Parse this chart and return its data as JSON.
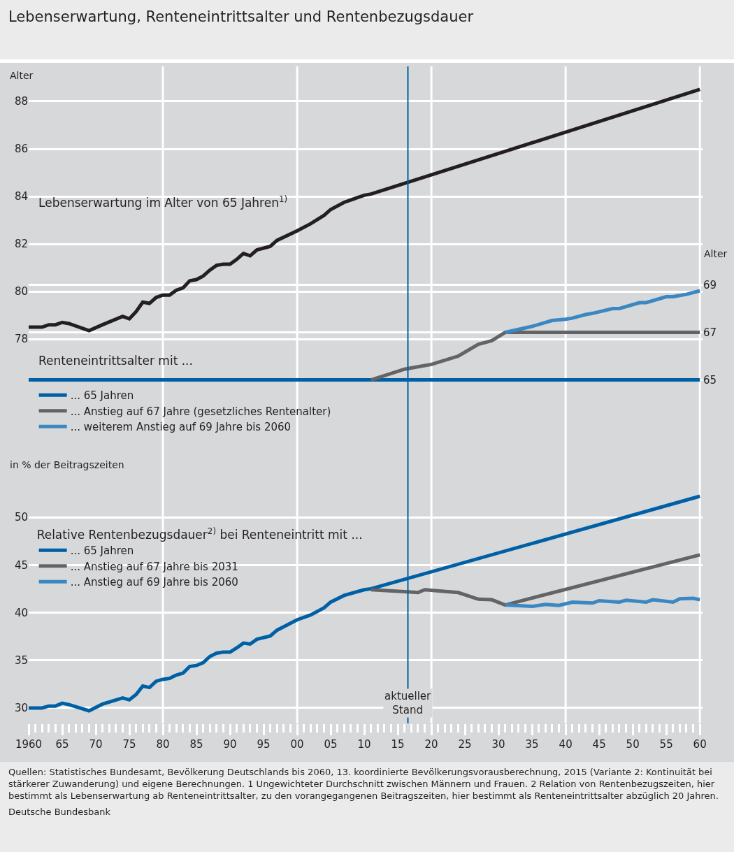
{
  "chart_data": [
    {
      "type": "line",
      "title": "Lebenserwartung, Renteneintrittsalter und Rentenbezugsdauer",
      "ylabel": "Alter",
      "y2label": "Alter",
      "annotations": [
        "Renteneintrittsalter mit ..."
      ],
      "xlim": [
        1960,
        2060.4
      ],
      "xticks": [
        {
          "value": 1960,
          "label": null
        },
        {
          "value": 1965,
          "label": null
        },
        {
          "value": 1970,
          "label": null
        },
        {
          "value": 1975,
          "label": null
        },
        {
          "value": 1980,
          "label": null
        },
        {
          "value": 1985,
          "label": null
        },
        {
          "value": 1990,
          "label": null
        },
        {
          "value": 1995,
          "label": null
        },
        {
          "value": 2000,
          "label": null
        },
        {
          "value": 2005,
          "label": null
        },
        {
          "value": 2010,
          "label": null
        },
        {
          "value": 2015,
          "label": null
        },
        {
          "value": 2020,
          "label": null
        },
        {
          "value": 2025,
          "label": null
        },
        {
          "value": 2030,
          "label": null
        },
        {
          "value": 2035,
          "label": null
        },
        {
          "value": 2040,
          "label": null
        },
        {
          "value": 2045,
          "label": null
        },
        {
          "value": 2050,
          "label": null
        },
        {
          "value": 2055,
          "label": null
        },
        {
          "value": 2060,
          "label": null
        }
      ],
      "ylim": [
        73.59,
        89.47
      ],
      "yticks": [
        78,
        80,
        82,
        84,
        86,
        88
      ],
      "y2lim": [
        62.31,
        78.19
      ],
      "y2ticks": [
        65,
        67,
        69
      ],
      "tick_labels": "y",
      "grid": true,
      "legend": "bottom left",
      "line_style": "solid",
      "marker": "none",
      "ref_lines": [
        {
          "axis": "x",
          "value": 2016.5,
          "color": "#0060a6"
        }
      ],
      "series": [
        {
          "name": "Lebenserwartung im Alter von 65 Jahren$^{1)}$",
          "color": "#231f20",
          "x": [
            1960,
            1962,
            1963,
            1964,
            1965,
            1966,
            1969,
            1971,
            1974,
            1975,
            1976,
            1977,
            1978,
            1979,
            1980,
            1981,
            1982,
            1983,
            1984,
            1985,
            1986,
            1987,
            1988,
            1989,
            1990,
            1991,
            1992,
            1993,
            1994,
            1996,
            1997,
            2000,
            2002,
            2004,
            2005,
            2007,
            2010,
            2011,
            2060
          ],
          "values": [
            78.5,
            78.5,
            78.6,
            78.6,
            78.7,
            78.65,
            78.35,
            78.6,
            78.95,
            78.85,
            79.15,
            79.55,
            79.5,
            79.75,
            79.85,
            79.85,
            80.05,
            80.15,
            80.45,
            80.5,
            80.65,
            80.9,
            81.1,
            81.15,
            81.15,
            81.35,
            81.6,
            81.5,
            81.75,
            81.9,
            82.15,
            82.55,
            82.85,
            83.2,
            83.45,
            83.75,
            84.05,
            84.1,
            88.5
          ]
        },
        {
          "name": "... Anstieg auf 67 Jahre (gesetzliches Rentenalter)",
          "color": "#646466",
          "axis": "y2",
          "x": [
            2011,
            2016,
            2018,
            2020,
            2024,
            2027,
            2029,
            2031,
            2060
          ],
          "values": [
            65,
            65.45,
            65.55,
            65.65,
            66.0,
            66.5,
            66.65,
            67,
            67
          ]
        },
        {
          "name": "... weiterem Anstieg auf 69 Jahre bis 2060",
          "color": "#3a87c2",
          "axis": "y2",
          "x": [
            2031,
            2035,
            2038,
            2040,
            2041,
            2043,
            2044,
            2047,
            2048,
            2051,
            2052,
            2055,
            2056,
            2058,
            2060
          ],
          "values": [
            67,
            67.25,
            67.5,
            67.55,
            67.6,
            67.75,
            67.8,
            68.0,
            68.0,
            68.25,
            68.25,
            68.5,
            68.5,
            68.6,
            68.75
          ]
        },
        {
          "name": "... 65 Jahren",
          "color": "#0060a6",
          "axis": "y2",
          "x": [
            1960,
            2060
          ],
          "values": [
            65,
            65
          ]
        }
      ]
    },
    {
      "type": "line",
      "ylabel": "in % der Beitragszeiten",
      "legend_title": "Relative Rentenbezugsdauer$^{2)}$ bei Renteneintritt mit ...",
      "annotations": [
        "Quellen: Statistisches Bundesamt, Bevölkerung Deutschlands bis 2060, 13. koordinierte Bevölkerungsvorausberechnung, 2015 (Variante 2: Kontinuität bei stärkerer Zuwanderung) und eigene Berechnungen. 1 Ungewichteter Durchschnitt zwischen Männern und Frauen. 2 Relation von Rentenbezugszeiten, hier bestimmt als Lebenserwartung ab Renteneintrittsalter, zu den vorangegangenen Beitragszeiten, hier bestimmt als Renteneintrittsalter abzüglich 20 Jahren.",
        "Deutsche Bundesbank"
      ],
      "xlim": [
        1960,
        2060.4
      ],
      "xticks": [
        {
          "value": 1960,
          "label": "1960"
        },
        {
          "value": 1965,
          "label": "65"
        },
        {
          "value": 1970,
          "label": "70"
        },
        {
          "value": 1975,
          "label": "75"
        },
        {
          "value": 1980,
          "label": "80"
        },
        {
          "value": 1985,
          "label": "85"
        },
        {
          "value": 1990,
          "label": "90"
        },
        {
          "value": 1995,
          "label": "95"
        },
        {
          "value": 2000,
          "label": "00"
        },
        {
          "value": 2005,
          "label": "05"
        },
        {
          "value": 2010,
          "label": "10"
        },
        {
          "value": 2015,
          "label": "15"
        },
        {
          "value": 2020,
          "label": "20"
        },
        {
          "value": 2025,
          "label": "25"
        },
        {
          "value": 2030,
          "label": "30"
        },
        {
          "value": 2035,
          "label": "35"
        },
        {
          "value": 2040,
          "label": "40"
        },
        {
          "value": 2045,
          "label": "45"
        },
        {
          "value": 2050,
          "label": "50"
        },
        {
          "value": 2055,
          "label": "55"
        },
        {
          "value": 2060,
          "label": "60"
        }
      ],
      "ylim": [
        28.38,
        57.7
      ],
      "yticks": [
        30,
        35,
        40,
        45,
        50
      ],
      "grid": true,
      "legend": "top left",
      "line_style": "solid",
      "marker": "none",
      "ref_lines": [
        {
          "axis": "x",
          "value": 2016.5,
          "label": "aktueller Stand",
          "color": "#0060a6"
        }
      ],
      "series": [
        {
          "name": "... 65 Jahren",
          "color": "#0060a6",
          "x": [
            1960,
            1962,
            1963,
            1964,
            1965,
            1966,
            1969,
            1971,
            1974,
            1975,
            1976,
            1977,
            1978,
            1979,
            1980,
            1981,
            1982,
            1983,
            1984,
            1985,
            1986,
            1987,
            1988,
            1989,
            1990,
            1991,
            1992,
            1993,
            1994,
            1996,
            1997,
            2000,
            2002,
            2004,
            2005,
            2007,
            2010,
            2011,
            2060
          ],
          "values": [
            30,
            30,
            30.2,
            30.2,
            30.5,
            30.35,
            29.7,
            30.4,
            31.05,
            30.85,
            31.4,
            32.3,
            32.15,
            32.8,
            33.0,
            33.1,
            33.45,
            33.65,
            34.35,
            34.45,
            34.75,
            35.4,
            35.75,
            35.85,
            35.85,
            36.3,
            36.8,
            36.7,
            37.2,
            37.55,
            38.15,
            39.25,
            39.75,
            40.5,
            41.1,
            41.8,
            42.4,
            42.5,
            52.2
          ]
        },
        {
          "name": "... Anstieg auf 67 Jahre bis 2031",
          "color": "#646466",
          "x": [
            2011,
            2016,
            2018,
            2019,
            2024,
            2027,
            2029,
            2031,
            2060
          ],
          "values": [
            42.4,
            42.2,
            42.1,
            42.4,
            42.1,
            41.4,
            41.35,
            40.8,
            46.05
          ]
        },
        {
          "name": "... Anstieg auf 69 Jahre bis 2060",
          "color": "#3a87c2",
          "x": [
            2031,
            2035,
            2037,
            2039,
            2041,
            2044,
            2045,
            2048,
            2049,
            2052,
            2053,
            2056,
            2057,
            2059,
            2060
          ],
          "values": [
            40.8,
            40.65,
            40.85,
            40.75,
            41.1,
            41.0,
            41.25,
            41.1,
            41.3,
            41.1,
            41.35,
            41.1,
            41.45,
            41.5,
            41.35
          ]
        }
      ]
    }
  ]
}
